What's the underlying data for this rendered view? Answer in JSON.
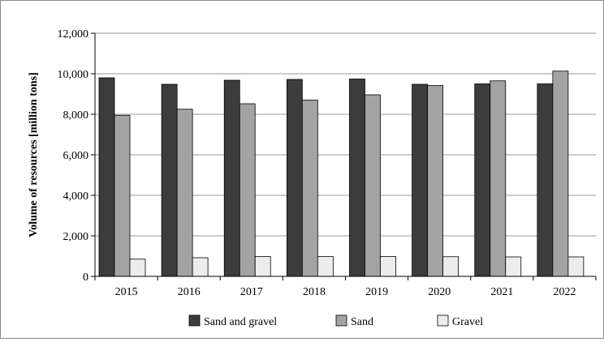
{
  "chart_data": {
    "type": "bar",
    "title": "",
    "xlabel": "",
    "ylabel": "Volume of resources [million tons]",
    "ylim": [
      0,
      12000
    ],
    "yticks": [
      "0",
      "2,000",
      "4,000",
      "6,000",
      "8,000",
      "10,000",
      "12,000"
    ],
    "grid": true,
    "legend_position": "bottom",
    "categories": [
      "2015",
      "2016",
      "2017",
      "2018",
      "2019",
      "2020",
      "2021",
      "2022"
    ],
    "series": [
      {
        "name": "Sand and gravel",
        "color": "#3c3c3c",
        "values": [
          9800,
          9480,
          9680,
          9720,
          9740,
          9480,
          9500,
          9500
        ]
      },
      {
        "name": "Sand",
        "color": "#a3a3a3",
        "values": [
          7950,
          8250,
          8520,
          8700,
          8960,
          9420,
          9650,
          10130
        ]
      },
      {
        "name": "Gravel",
        "color": "#ececec",
        "values": [
          850,
          920,
          980,
          980,
          980,
          970,
          960,
          960
        ]
      }
    ]
  }
}
